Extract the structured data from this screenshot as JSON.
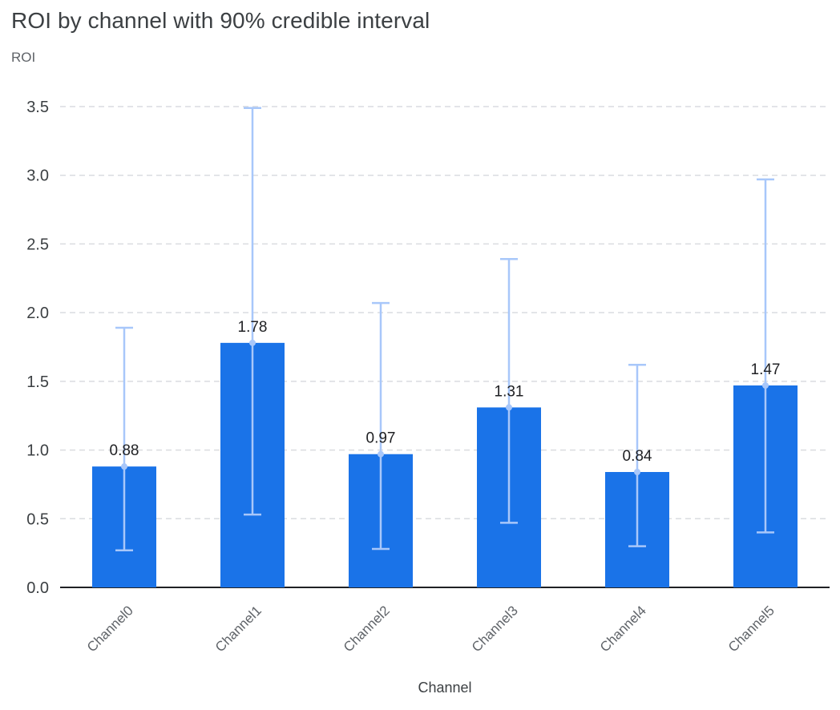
{
  "chart": {
    "title": "ROI by channel with 90% credible interval",
    "ylabel": "ROI",
    "xlabel": "Channel"
  },
  "chart_data": {
    "type": "bar",
    "title": "ROI by channel with 90% credible interval",
    "xlabel": "Channel",
    "ylabel": "ROI",
    "categories": [
      "Channel0",
      "Channel1",
      "Channel2",
      "Channel3",
      "Channel4",
      "Channel5"
    ],
    "values": [
      0.88,
      1.78,
      0.97,
      1.31,
      0.84,
      1.47
    ],
    "data_labels": [
      "0.88",
      "1.78",
      "0.97",
      "1.31",
      "0.84",
      "1.47"
    ],
    "error_low": [
      0.27,
      0.53,
      0.28,
      0.47,
      0.3,
      0.4
    ],
    "error_high": [
      1.89,
      3.49,
      2.07,
      2.39,
      1.62,
      2.97
    ],
    "error_interval": "90% credible interval",
    "yticks": [
      0.0,
      0.5,
      1.0,
      1.5,
      2.0,
      2.5,
      3.0,
      3.5
    ],
    "ylim": [
      0,
      3.5
    ],
    "grid": "dashed horizontal gridlines",
    "legend": "none",
    "colors": {
      "bar": "#1a73e8",
      "error_bar": "#a8c7fa",
      "axis_text": "#3c4043",
      "x_tick_text": "#5f6368",
      "label_text": "#202124",
      "gridline": "#dadce0",
      "axis_line": "#202124",
      "title": "#3c4043"
    }
  }
}
